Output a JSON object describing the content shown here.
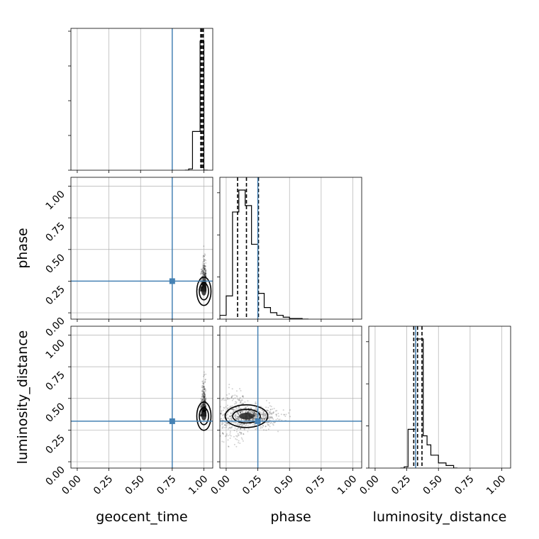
{
  "chart_data": {
    "type": "corner",
    "parameters": [
      "geocent_time",
      "phase",
      "luminosity_distance"
    ],
    "truths": {
      "geocent_time": 0.75,
      "phase": 0.25,
      "luminosity_distance": 0.32
    },
    "axis_range": [
      -0.05,
      1.07
    ],
    "ticks": [
      0.0,
      0.25,
      0.5,
      0.75,
      1.0
    ],
    "tick_labels": [
      "0.00",
      "0.25",
      "0.50",
      "0.75",
      "1.00"
    ],
    "grid": true,
    "colors": {
      "truth": "#4682b4",
      "hist": "#000000",
      "samples": "#000000"
    },
    "marginals": {
      "geocent_time": {
        "bin_edges": [
          0.85,
          0.88,
          0.91,
          0.94,
          0.97,
          1.0,
          1.03
        ],
        "counts": [
          0.0,
          0.01,
          0.3,
          0.3,
          1.0,
          0.0
        ],
        "quantiles": [
          0.975,
          0.985,
          0.995
        ]
      },
      "phase": {
        "bin_edges": [
          -0.05,
          0.0,
          0.05,
          0.1,
          0.15,
          0.2,
          0.25,
          0.3,
          0.35,
          0.4,
          0.45,
          0.5,
          0.55,
          0.6,
          0.65
        ],
        "counts": [
          0.03,
          0.18,
          0.83,
          1.0,
          0.88,
          0.58,
          0.2,
          0.09,
          0.05,
          0.03,
          0.015,
          0.005,
          0.005,
          0.0
        ],
        "quantiles": [
          0.09,
          0.16,
          0.255
        ]
      },
      "luminosity_distance": {
        "bin_edges": [
          0.2,
          0.23,
          0.26,
          0.29,
          0.32,
          0.35,
          0.38,
          0.41,
          0.44,
          0.47,
          0.5,
          0.53,
          0.56,
          0.59,
          0.62,
          0.65
        ],
        "counts": [
          0.0,
          0.01,
          0.3,
          0.3,
          1.0,
          1.0,
          0.25,
          0.18,
          0.1,
          0.1,
          0.04,
          0.04,
          0.02,
          0.02,
          0.0
        ],
        "quantiles": [
          0.305,
          0.335,
          0.37
        ]
      }
    },
    "joint": [
      {
        "x": "geocent_time",
        "y": "phase",
        "center": [
          1.0,
          0.17
        ],
        "spread": [
          0.012,
          0.09
        ],
        "count": 700
      },
      {
        "x": "geocent_time",
        "y": "luminosity_distance",
        "center": [
          1.0,
          0.36
        ],
        "spread": [
          0.012,
          0.09
        ],
        "count": 700
      },
      {
        "x": "phase",
        "y": "luminosity_distance",
        "center": [
          0.16,
          0.36
        ],
        "spread": [
          0.12,
          0.07
        ],
        "count": 900
      }
    ]
  }
}
